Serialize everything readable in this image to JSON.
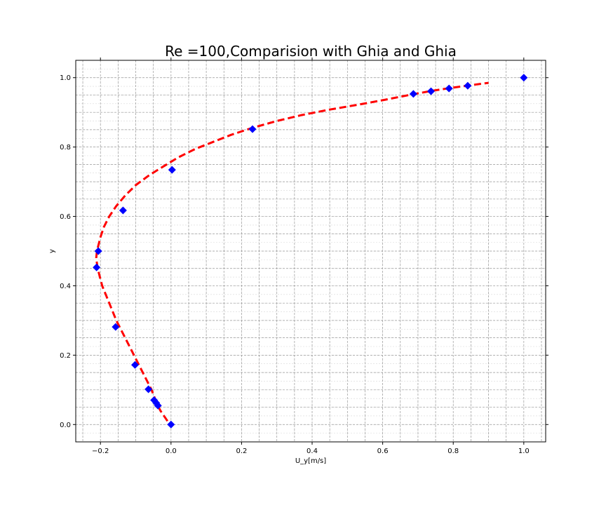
{
  "chart_data": {
    "type": "line",
    "title": "Re =100,Comparision with Ghia and Ghia",
    "xlabel": "U_y[m/s]",
    "ylabel": "y",
    "xlim": [
      -0.27,
      1.062
    ],
    "ylim": [
      -0.05,
      1.05
    ],
    "x_ticks": [
      -0.2,
      0.0,
      0.2,
      0.4,
      0.6,
      0.8,
      1.0
    ],
    "x_tick_labels": [
      "−0.2",
      "0.0",
      "0.2",
      "0.4",
      "0.6",
      "0.8",
      "1.0"
    ],
    "y_ticks": [
      0.0,
      0.2,
      0.4,
      0.6,
      0.8,
      1.0
    ],
    "y_tick_labels": [
      "0.0",
      "0.2",
      "0.4",
      "0.6",
      "0.8",
      "1.0"
    ],
    "grid": true,
    "series": [
      {
        "style": "dashed-line",
        "color": "#ff0000",
        "x": [
          -0.01,
          -0.03,
          -0.04,
          -0.055,
          -0.07,
          -0.09,
          -0.11,
          -0.13,
          -0.155,
          -0.175,
          -0.195,
          -0.208,
          -0.212,
          -0.21,
          -0.2,
          -0.19,
          -0.175,
          -0.155,
          -0.13,
          -0.1,
          -0.06,
          -0.02,
          0.02,
          0.07,
          0.12,
          0.17,
          0.23,
          0.3,
          0.37,
          0.45,
          0.53,
          0.6,
          0.65,
          0.69,
          0.74,
          0.79,
          0.84,
          0.9
        ],
        "y": [
          0.01,
          0.04,
          0.06,
          0.1,
          0.13,
          0.17,
          0.21,
          0.25,
          0.3,
          0.35,
          0.4,
          0.45,
          0.48,
          0.5,
          0.54,
          0.57,
          0.6,
          0.63,
          0.66,
          0.69,
          0.72,
          0.745,
          0.77,
          0.795,
          0.815,
          0.835,
          0.855,
          0.875,
          0.892,
          0.908,
          0.922,
          0.935,
          0.945,
          0.953,
          0.962,
          0.97,
          0.977,
          0.985
        ]
      },
      {
        "style": "diamond-markers",
        "color": "#0000ff",
        "x": [
          0.0,
          -0.037,
          -0.042,
          -0.048,
          -0.064,
          -0.102,
          -0.157,
          -0.211,
          -0.206,
          -0.136,
          0.003,
          0.231,
          0.687,
          0.737,
          0.788,
          0.841,
          1.0
        ],
        "y": [
          0.0,
          0.0547,
          0.0625,
          0.0703,
          0.1016,
          0.1719,
          0.2813,
          0.4531,
          0.5,
          0.6172,
          0.7344,
          0.8516,
          0.9531,
          0.9609,
          0.9688,
          0.9766,
          1.0
        ]
      }
    ]
  }
}
